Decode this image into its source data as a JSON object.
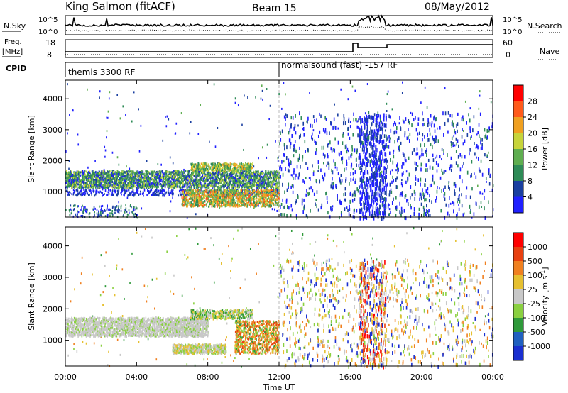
{
  "header": {
    "station": "King Salmon (fitACF)",
    "beam": "Beam 15",
    "date": "08/May/2012"
  },
  "strip_labels": {
    "nsky": "N.Sky",
    "freq_top": "Freq.",
    "freq_unit": "[MHz]",
    "cpid": "CPID",
    "nsearch": "N.Search",
    "nave": "Nave",
    "nsky_ticks": [
      "10^5",
      "10^0"
    ],
    "freq_ticks": [
      "18",
      "8"
    ],
    "nave_ticks": [
      "60",
      "0"
    ],
    "nsearch_ticks": [
      "10^5",
      "10^0"
    ]
  },
  "cpid_blocks": [
    {
      "label": "themis 3300 RF",
      "start_hour": 0
    },
    {
      "label": "normalsound (fast) -157 RF",
      "start_hour": 12
    }
  ],
  "axes": {
    "ylabel": "Slant Range [km]",
    "xlabel": "Time UT",
    "yticks": [
      "1000",
      "2000",
      "3000",
      "4000"
    ],
    "xticks": [
      "00:00",
      "04:00",
      "08:00",
      "12:00",
      "16:00",
      "20:00",
      "00:00"
    ]
  },
  "power_scale": {
    "label": "Power [dB]",
    "ticks": [
      "4",
      "8",
      "12",
      "16",
      "20",
      "24",
      "28"
    ],
    "colors": [
      "#2020ff",
      "#1a3fa0",
      "#2e8b57",
      "#5fae50",
      "#c7d43a",
      "#f0a020",
      "#ff5a1a",
      "#ff0000"
    ]
  },
  "velocity_scale": {
    "label": "Velocity [m s",
    "label_sup": "-1",
    "label_end": "]",
    "ticks": [
      "1000",
      "500",
      "100",
      "25",
      "-25",
      "-100",
      "-500",
      "-1000"
    ],
    "colors": [
      "#1a2fd0",
      "#2060c0",
      "#2f9a3a",
      "#8ad040",
      "#c8c8c8",
      "#e6c030",
      "#f08020",
      "#e84010",
      "#ff0000"
    ]
  },
  "chart_data": {
    "type": "heatmap",
    "x_range_hours": [
      0,
      24
    ],
    "y_range_km": [
      180,
      4600
    ],
    "power_bands": [
      {
        "t_start": 0,
        "t_end": 12,
        "range_low": 1150,
        "range_high": 1700,
        "dominant_power_db": "4-16"
      },
      {
        "t_start": 7,
        "t_end": 12,
        "range_low": 550,
        "range_high": 1100,
        "dominant_power_db": "12-24"
      },
      {
        "t_start": 16.5,
        "t_end": 18,
        "range_low": 180,
        "range_high": 3600,
        "dominant_power_db": "4"
      }
    ],
    "velocity_bands": [
      {
        "t_start": 0,
        "t_end": 7,
        "range_low": 1150,
        "range_high": 1750,
        "velocity": "-25 to 25"
      },
      {
        "t_start": 9.5,
        "t_end": 12,
        "range_low": 600,
        "range_high": 1600,
        "velocity": "-100 to -500"
      }
    ]
  }
}
